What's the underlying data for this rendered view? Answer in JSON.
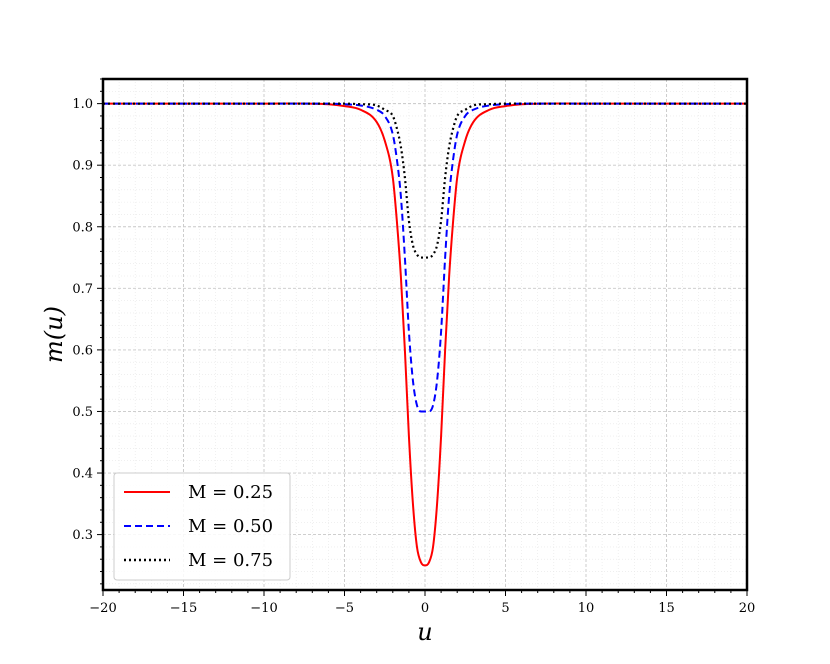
{
  "chart_data": {
    "type": "line",
    "xlabel": "u",
    "ylabel": "m(u)",
    "xlim": [
      -20,
      20
    ],
    "ylim": [
      0.21,
      1.04
    ],
    "x_ticks": [
      -20,
      -15,
      -10,
      -5,
      0,
      5,
      10,
      15,
      20
    ],
    "x_tick_labels": [
      "−20",
      "−15",
      "−10",
      "−5",
      "0",
      "5",
      "10",
      "15",
      "20"
    ],
    "y_ticks": [
      0.3,
      0.4,
      0.5,
      0.6,
      0.7,
      0.8,
      0.9,
      1.0
    ],
    "y_tick_labels": [
      "0.3",
      "0.4",
      "0.5",
      "0.6",
      "0.7",
      "0.8",
      "0.9",
      "1.0"
    ],
    "grid": true,
    "legend_position": "lower-left",
    "x": [
      -20,
      -10,
      -6,
      -5,
      -4,
      -3,
      -2.5,
      -2,
      -1.75,
      -1.5,
      -1.25,
      -1,
      -0.75,
      -0.5,
      -0.25,
      0,
      0.25,
      0.5,
      0.75,
      1,
      1.25,
      1.5,
      1.75,
      2,
      2.5,
      3,
      4,
      5,
      6,
      10,
      20
    ],
    "series": [
      {
        "name": "M = 0.25",
        "color": "#ff0000",
        "style": "solid",
        "values": [
          1.0,
          1.0,
          0.999,
          0.996,
          0.99,
          0.97,
          0.94,
          0.88,
          0.81,
          0.72,
          0.6,
          0.46,
          0.35,
          0.28,
          0.255,
          0.25,
          0.255,
          0.28,
          0.35,
          0.46,
          0.6,
          0.72,
          0.81,
          0.88,
          0.94,
          0.97,
          0.99,
          0.996,
          0.999,
          1.0,
          1.0
        ]
      },
      {
        "name": "M = 0.50",
        "color": "#0000ff",
        "style": "dashed",
        "values": [
          1.0,
          1.0,
          1.0,
          0.999,
          0.997,
          0.99,
          0.98,
          0.95,
          0.91,
          0.85,
          0.75,
          0.63,
          0.55,
          0.51,
          0.5,
          0.5,
          0.5,
          0.51,
          0.55,
          0.63,
          0.75,
          0.85,
          0.91,
          0.95,
          0.98,
          0.99,
          0.997,
          0.999,
          1.0,
          1.0,
          1.0
        ]
      },
      {
        "name": "M = 0.75",
        "color": "#000000",
        "style": "dotted",
        "values": [
          1.0,
          1.0,
          1.0,
          1.0,
          0.999,
          0.997,
          0.99,
          0.98,
          0.96,
          0.93,
          0.88,
          0.81,
          0.77,
          0.755,
          0.75,
          0.75,
          0.75,
          0.755,
          0.77,
          0.81,
          0.88,
          0.93,
          0.96,
          0.98,
          0.99,
          0.997,
          0.999,
          1.0,
          1.0,
          1.0,
          1.0
        ]
      }
    ]
  }
}
